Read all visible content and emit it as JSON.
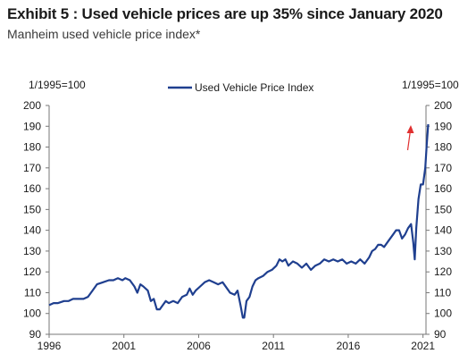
{
  "title": "Exhibit 5 : Used vehicle prices are up 35% since January 2020",
  "subtitle": "Manheim used vehicle price index*",
  "chart_data": {
    "type": "line",
    "y_unit_left": "1/1995=100",
    "y_unit_right": "1/1995=100",
    "ylim": [
      90,
      200
    ],
    "yticks": [
      90,
      100,
      110,
      120,
      130,
      140,
      150,
      160,
      170,
      180,
      190,
      200
    ],
    "xlim": [
      1996,
      2021.2
    ],
    "xticks": [
      1996,
      2001,
      2006,
      2011,
      2016,
      2021
    ],
    "grid": false,
    "legend": "top-center",
    "line_color": "#1f3f8f",
    "annotation": {
      "type": "arrow",
      "color": "#e03030",
      "direction": "up"
    },
    "series": [
      {
        "name": "Used Vehicle Price Index",
        "points": [
          [
            1996.0,
            104
          ],
          [
            1996.3,
            105
          ],
          [
            1996.6,
            105
          ],
          [
            1997.0,
            106
          ],
          [
            1997.3,
            106
          ],
          [
            1997.6,
            107
          ],
          [
            1998.0,
            107
          ],
          [
            1998.3,
            107
          ],
          [
            1998.6,
            108
          ],
          [
            1998.9,
            111
          ],
          [
            1999.2,
            114
          ],
          [
            1999.6,
            115
          ],
          [
            2000.0,
            116
          ],
          [
            2000.3,
            116
          ],
          [
            2000.6,
            117
          ],
          [
            2000.9,
            116
          ],
          [
            2001.1,
            117
          ],
          [
            2001.4,
            116
          ],
          [
            2001.7,
            113
          ],
          [
            2001.9,
            110
          ],
          [
            2002.1,
            114
          ],
          [
            2002.3,
            113
          ],
          [
            2002.6,
            111
          ],
          [
            2002.8,
            106
          ],
          [
            2003.0,
            107
          ],
          [
            2003.2,
            102
          ],
          [
            2003.4,
            102
          ],
          [
            2003.6,
            104
          ],
          [
            2003.8,
            106
          ],
          [
            2004.0,
            105
          ],
          [
            2004.3,
            106
          ],
          [
            2004.6,
            105
          ],
          [
            2004.9,
            108
          ],
          [
            2005.2,
            109
          ],
          [
            2005.4,
            112
          ],
          [
            2005.6,
            109
          ],
          [
            2005.8,
            111
          ],
          [
            2006.1,
            113
          ],
          [
            2006.4,
            115
          ],
          [
            2006.7,
            116
          ],
          [
            2007.0,
            115
          ],
          [
            2007.3,
            114
          ],
          [
            2007.6,
            115
          ],
          [
            2007.9,
            112
          ],
          [
            2008.1,
            110
          ],
          [
            2008.4,
            109
          ],
          [
            2008.6,
            111
          ],
          [
            2008.8,
            104
          ],
          [
            2008.95,
            98
          ],
          [
            2009.05,
            98
          ],
          [
            2009.2,
            106
          ],
          [
            2009.4,
            108
          ],
          [
            2009.6,
            113
          ],
          [
            2009.8,
            116
          ],
          [
            2010.0,
            117
          ],
          [
            2010.3,
            118
          ],
          [
            2010.6,
            120
          ],
          [
            2010.9,
            121
          ],
          [
            2011.2,
            123
          ],
          [
            2011.4,
            126
          ],
          [
            2011.6,
            125
          ],
          [
            2011.8,
            126
          ],
          [
            2012.0,
            123
          ],
          [
            2012.3,
            125
          ],
          [
            2012.6,
            124
          ],
          [
            2012.9,
            122
          ],
          [
            2013.2,
            124
          ],
          [
            2013.5,
            121
          ],
          [
            2013.8,
            123
          ],
          [
            2014.1,
            124
          ],
          [
            2014.4,
            126
          ],
          [
            2014.7,
            125
          ],
          [
            2015.0,
            126
          ],
          [
            2015.3,
            125
          ],
          [
            2015.6,
            126
          ],
          [
            2015.9,
            124
          ],
          [
            2016.2,
            125
          ],
          [
            2016.5,
            124
          ],
          [
            2016.8,
            126
          ],
          [
            2017.1,
            124
          ],
          [
            2017.4,
            127
          ],
          [
            2017.6,
            130
          ],
          [
            2017.8,
            131
          ],
          [
            2018.0,
            133
          ],
          [
            2018.2,
            133
          ],
          [
            2018.4,
            132
          ],
          [
            2018.7,
            135
          ],
          [
            2019.0,
            138
          ],
          [
            2019.2,
            140
          ],
          [
            2019.4,
            140
          ],
          [
            2019.6,
            136
          ],
          [
            2019.8,
            138
          ],
          [
            2020.0,
            141
          ],
          [
            2020.2,
            143
          ],
          [
            2020.35,
            134
          ],
          [
            2020.45,
            126
          ],
          [
            2020.55,
            141
          ],
          [
            2020.7,
            155
          ],
          [
            2020.85,
            162
          ],
          [
            2021.0,
            162
          ],
          [
            2021.15,
            170
          ],
          [
            2021.25,
            181
          ],
          [
            2021.35,
            191
          ]
        ]
      }
    ]
  }
}
